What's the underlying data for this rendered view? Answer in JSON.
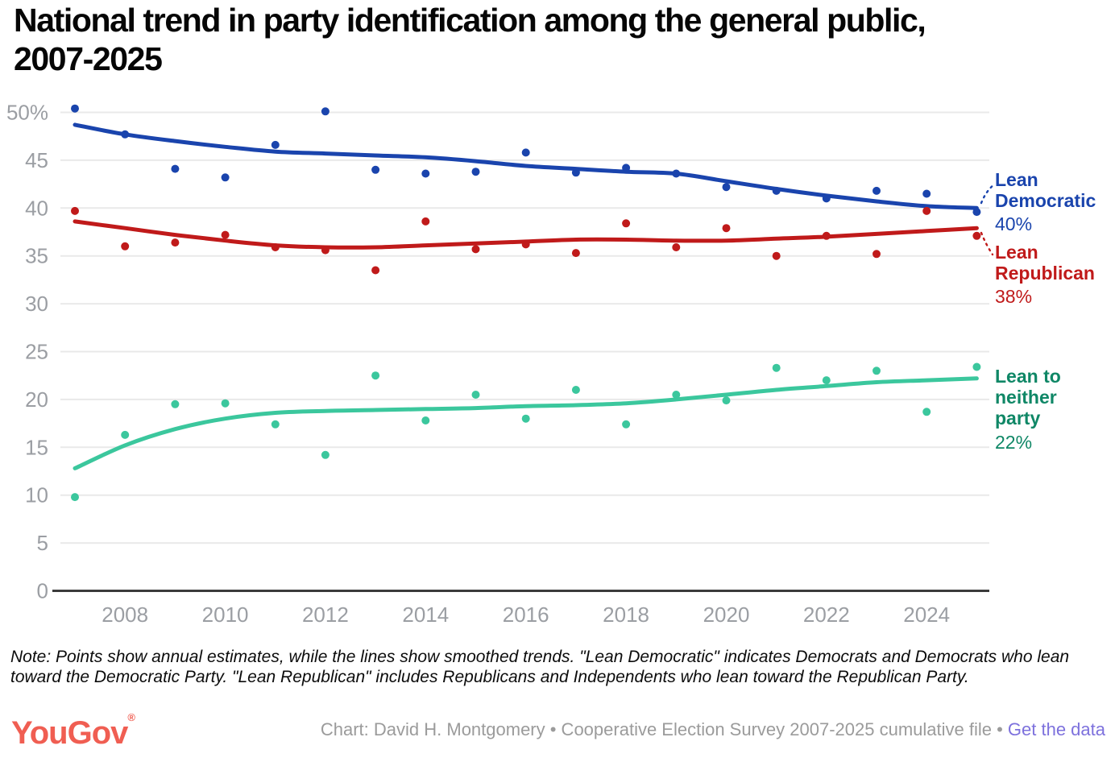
{
  "title": {
    "line1": "National trend in party identification among the general public,",
    "line2": "2007-2025"
  },
  "chart_data": {
    "type": "scatter+line",
    "title": "National trend in party identification among the general public, 2007-2025",
    "x": [
      2007,
      2008,
      2009,
      2010,
      2011,
      2012,
      2013,
      2014,
      2015,
      2016,
      2017,
      2018,
      2019,
      2020,
      2021,
      2022,
      2023,
      2024,
      2025
    ],
    "xticks": [
      2008,
      2010,
      2012,
      2014,
      2016,
      2018,
      2020,
      2022,
      2024
    ],
    "yticks": [
      0,
      5,
      10,
      15,
      20,
      25,
      30,
      35,
      40,
      45,
      50
    ],
    "ylim": [
      0,
      50
    ],
    "ytick_top_label": "50%",
    "grid": "horizontal gridlines, dark zero axis",
    "legend_position": "right edge annotations",
    "series": [
      {
        "name": "Lean Democratic",
        "annotation_value": "40%",
        "color": "#1a44ad",
        "points": [
          50.4,
          47.7,
          44.1,
          43.2,
          46.6,
          50.1,
          44.0,
          43.6,
          43.8,
          45.8,
          43.7,
          44.2,
          43.6,
          42.2,
          41.8,
          41.0,
          41.8,
          41.5,
          39.6
        ],
        "trend": [
          48.7,
          47.7,
          47.0,
          46.4,
          45.9,
          45.7,
          45.5,
          45.3,
          44.9,
          44.4,
          44.1,
          43.8,
          43.6,
          42.8,
          42.0,
          41.3,
          40.7,
          40.2,
          40.0
        ]
      },
      {
        "name": "Lean Republican",
        "annotation_value": "38%",
        "color": "#c01a1a",
        "points": [
          39.7,
          36.0,
          36.4,
          37.2,
          35.9,
          35.6,
          33.5,
          38.6,
          35.7,
          36.2,
          35.3,
          38.4,
          35.9,
          37.9,
          35.0,
          37.1,
          35.2,
          39.7,
          37.1
        ],
        "trend": [
          38.6,
          37.9,
          37.2,
          36.6,
          36.1,
          35.9,
          35.9,
          36.1,
          36.3,
          36.5,
          36.7,
          36.7,
          36.6,
          36.6,
          36.8,
          37.0,
          37.3,
          37.6,
          37.9
        ]
      },
      {
        "name": "Lean to neither party",
        "annotation_value": "22%",
        "color": "#3bc79d",
        "label_color": "#0f8766",
        "points": [
          9.8,
          16.3,
          19.5,
          19.6,
          17.4,
          14.2,
          22.5,
          17.8,
          20.5,
          18.0,
          21.0,
          17.4,
          20.5,
          19.9,
          23.3,
          22.0,
          23.0,
          18.7,
          23.4
        ],
        "trend": [
          12.8,
          15.2,
          16.9,
          18.0,
          18.6,
          18.8,
          18.9,
          19.0,
          19.1,
          19.3,
          19.4,
          19.6,
          20.0,
          20.5,
          21.0,
          21.4,
          21.8,
          22.0,
          22.2
        ]
      }
    ]
  },
  "note": "Note: Points show annual estimates, while the lines show smoothed trends. \"Lean Democratic\" indicates Democrats and Democrats who lean toward the Democratic Party. \"Lean Republican\" includes Republicans and Independents who lean toward the Republican Party.",
  "footer": {
    "logo": "YouGov",
    "registered_mark": "®",
    "credit_prefix": "Chart: David H. Montgomery • Cooperative Election Survey 2007-2025 cumulative file • ",
    "link_text": "Get the data"
  }
}
